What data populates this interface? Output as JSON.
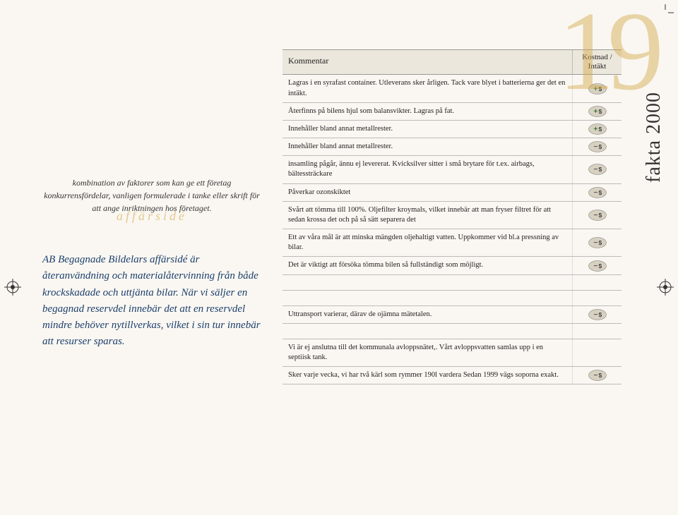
{
  "page_number": "19",
  "side_label": "fakta 2000",
  "watermark": "affärsidé",
  "left": {
    "intro": "kombination av faktorer som kan ge ett företag konkurrensfördelar, vanligen formulerade i tanke eller skrift för att ange inriktningen hos företaget.",
    "mission": "AB Begagnade Bildelars affärsidé är återanvändning och materialåtervinning från både krockskadade och uttjänta bilar. När vi säljer en begagnad reservdel innebär det att en reservdel mindre behöver nytillverkas, vilket i sin tur innebär att resurser sparas."
  },
  "table": {
    "header_comment": "Kommentar",
    "header_cost": "Kostnad / Intäkt",
    "rows": [
      {
        "text": "Lagras i en syrafast container. Utleverans sker årligen. Tack vare blyet i batterierna ger det en intäkt.",
        "icon": "plus"
      },
      {
        "text": "Återfinns på bilens hjul som balansvikter. Lagras på fat.",
        "icon": "plus"
      },
      {
        "text": "Innehåller bland annat metallrester.",
        "icon": "plus"
      },
      {
        "text": "Innehåller bland annat metallrester.",
        "icon": "minus"
      },
      {
        "text": "insamling pågår, ännu ej levererat. Kvicksilver sitter i små brytare för t.ex. airbags, bältessträckare",
        "icon": "minus"
      },
      {
        "text": "Påverkar ozonskiktet",
        "icon": "minus"
      },
      {
        "text": "Svårt att tömma till 100%. Oljefilter kroymals, vilket innebär att man fryser filtret för att sedan krossa det och på så sätt separera det",
        "icon": "minus"
      },
      {
        "text": "Ett av våra mål är att minska mängden oljehaltigt vatten. Uppkommer vid bl.a pressning av bilar.",
        "icon": "minus"
      },
      {
        "text": "Det är viktigt att försöka tömma bilen så fullständigt som möjligt.",
        "icon": "minus"
      },
      {
        "text": "",
        "icon": ""
      },
      {
        "text": "",
        "icon": ""
      },
      {
        "text": "Uttransport varierar, därav de ojämna mätetalen.",
        "icon": "minus"
      },
      {
        "text": "",
        "icon": ""
      },
      {
        "text": "Vi är ej anslutna till det kommunala avloppsnätet,. Vårt avloppsvatten samlas upp i en septiisk tank.",
        "icon": ""
      },
      {
        "text": "Sker varje vecka, vi har två kärl som rymmer 190l vardera Sedan 1999 vägs  soporna exakt.",
        "icon": "minus"
      }
    ]
  },
  "colors": {
    "accent": "#d4a94a",
    "mission_text": "#1a3e6b",
    "icon_plus": "#3a7a3a",
    "icon_minus": "#5a5a5a",
    "icon_bg": "#d8d0c0"
  }
}
